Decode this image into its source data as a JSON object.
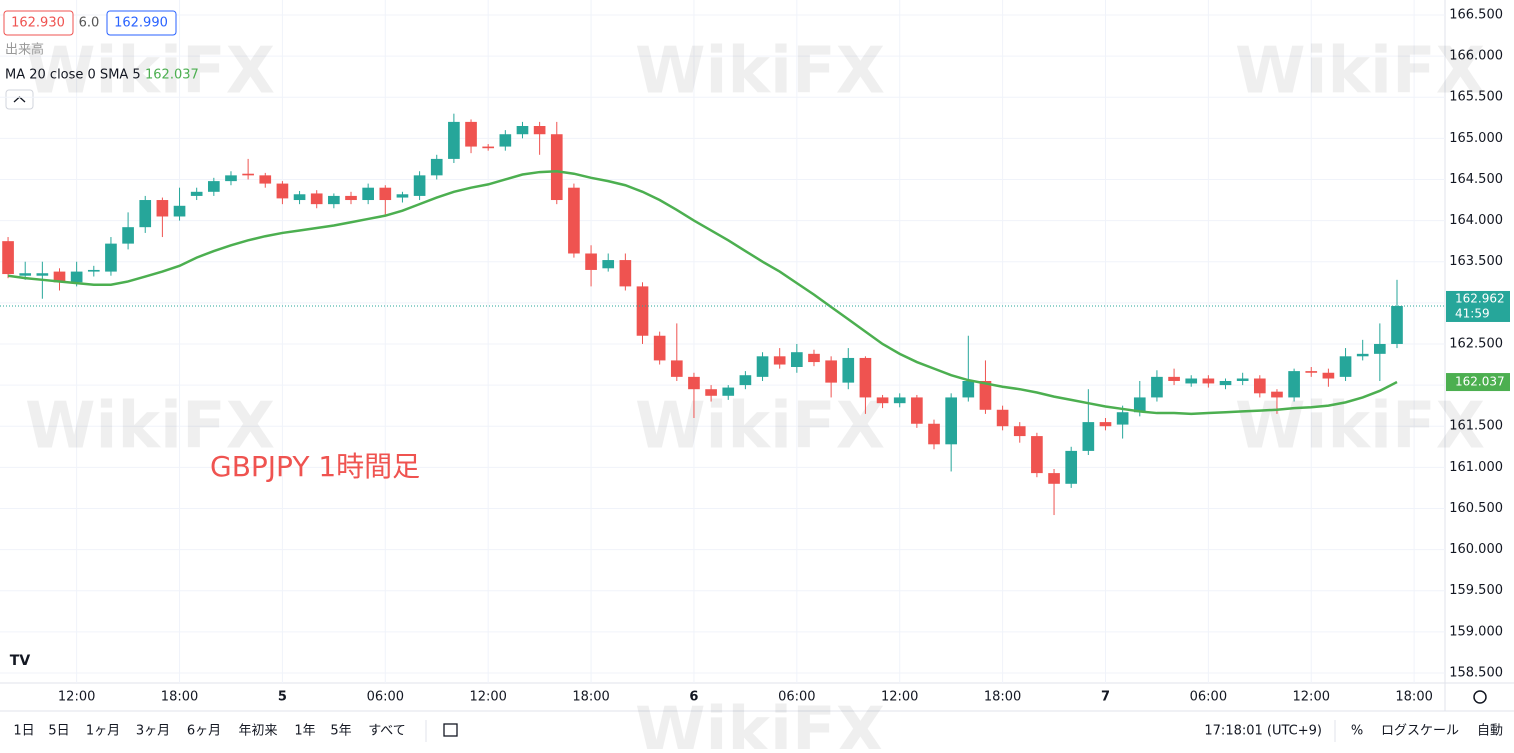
{
  "chart_data": {
    "type": "candlestick",
    "title": "GBPJPY 1時間足",
    "header": {
      "bid": "162.930",
      "spread": "6.0",
      "ask": "162.990",
      "volume_label": "出来高",
      "indicator_label": "MA 20 close 0 SMA 5",
      "indicator_value": "162.037"
    },
    "watermark": "WikiFX",
    "x": [
      0,
      1,
      2,
      3,
      4,
      5,
      6,
      7,
      8,
      9,
      10,
      11,
      12,
      13,
      14,
      15,
      16,
      17,
      18,
      19,
      20,
      21,
      22,
      23,
      24,
      25,
      26,
      27,
      28,
      29,
      30,
      31,
      32,
      33,
      34,
      35,
      36,
      37,
      38,
      39,
      40,
      41,
      42,
      43,
      44,
      45,
      46,
      47,
      48,
      49,
      50,
      51,
      52,
      53,
      54,
      55,
      56,
      57,
      58,
      59,
      60,
      61,
      62,
      63,
      64,
      65,
      66,
      67,
      68,
      69,
      70,
      71,
      72,
      73,
      74,
      75,
      76,
      77,
      78,
      79,
      80,
      81
    ],
    "open": [
      163.75,
      163.33,
      163.33,
      163.38,
      163.25,
      163.38,
      163.38,
      163.72,
      163.92,
      164.25,
      164.05,
      164.3,
      164.35,
      164.48,
      164.57,
      164.55,
      164.45,
      164.25,
      164.33,
      164.2,
      164.3,
      164.25,
      164.4,
      164.28,
      164.3,
      164.55,
      164.75,
      165.2,
      164.9,
      164.9,
      165.05,
      165.15,
      165.05,
      164.4,
      163.6,
      163.42,
      163.52,
      163.2,
      162.6,
      162.3,
      162.1,
      161.95,
      161.87,
      162.0,
      162.1,
      162.35,
      162.22,
      162.38,
      162.3,
      162.03,
      162.33,
      161.85,
      161.78,
      161.85,
      161.53,
      161.28,
      161.85,
      162.05,
      161.7,
      161.5,
      161.38,
      160.93,
      160.8,
      161.2,
      161.55,
      161.52,
      161.67,
      161.85,
      162.1,
      162.02,
      162.08,
      162.0,
      162.05,
      162.08,
      161.92,
      161.85,
      162.17,
      162.15,
      162.1,
      162.35,
      162.38,
      162.5
    ],
    "high": [
      163.8,
      163.5,
      163.5,
      163.42,
      163.5,
      163.45,
      163.8,
      164.1,
      164.3,
      164.28,
      164.4,
      164.4,
      164.52,
      164.6,
      164.75,
      164.58,
      164.48,
      164.36,
      164.37,
      164.33,
      164.35,
      164.45,
      164.43,
      164.35,
      164.6,
      164.8,
      165.3,
      165.23,
      164.93,
      165.1,
      165.2,
      165.2,
      165.2,
      164.45,
      163.7,
      163.6,
      163.6,
      163.25,
      162.65,
      162.75,
      162.15,
      162.0,
      162.0,
      162.17,
      162.4,
      162.45,
      162.5,
      162.43,
      162.35,
      162.45,
      162.35,
      161.88,
      161.9,
      161.88,
      161.58,
      161.9,
      162.6,
      162.3,
      161.75,
      161.55,
      161.42,
      160.98,
      161.25,
      161.95,
      161.6,
      161.75,
      162.05,
      162.18,
      162.2,
      162.12,
      162.12,
      162.08,
      162.15,
      162.12,
      161.95,
      162.2,
      162.22,
      162.2,
      162.45,
      162.55,
      162.75,
      163.28
    ],
    "low": [
      163.3,
      163.28,
      163.05,
      163.15,
      163.2,
      163.32,
      163.33,
      163.65,
      163.85,
      163.8,
      164.0,
      164.25,
      164.3,
      164.43,
      164.5,
      164.4,
      164.2,
      164.2,
      164.15,
      164.15,
      164.2,
      164.2,
      164.05,
      164.22,
      164.25,
      164.5,
      164.7,
      164.82,
      164.85,
      164.85,
      165.0,
      164.8,
      164.2,
      163.55,
      163.2,
      163.38,
      163.15,
      162.5,
      162.25,
      162.05,
      161.6,
      161.8,
      161.82,
      161.95,
      162.05,
      162.2,
      162.15,
      162.23,
      161.85,
      161.95,
      161.65,
      161.72,
      161.73,
      161.48,
      161.22,
      160.95,
      161.8,
      161.65,
      161.45,
      161.3,
      160.88,
      160.42,
      160.75,
      161.15,
      161.45,
      161.35,
      161.62,
      161.8,
      162.0,
      161.98,
      161.97,
      161.95,
      162.0,
      161.85,
      161.65,
      161.8,
      162.1,
      161.98,
      162.05,
      162.3,
      162.05,
      162.45
    ],
    "close": [
      163.35,
      163.36,
      163.36,
      163.25,
      163.38,
      163.4,
      163.72,
      163.92,
      164.25,
      164.05,
      164.18,
      164.35,
      164.48,
      164.55,
      164.55,
      164.45,
      164.27,
      164.32,
      164.2,
      164.3,
      164.25,
      164.4,
      164.25,
      164.32,
      164.55,
      164.75,
      165.2,
      164.9,
      164.88,
      165.05,
      165.15,
      165.05,
      164.25,
      163.6,
      163.4,
      163.52,
      163.2,
      162.6,
      162.3,
      162.1,
      161.95,
      161.87,
      161.97,
      162.12,
      162.35,
      162.25,
      162.4,
      162.28,
      162.03,
      162.33,
      161.85,
      161.78,
      161.85,
      161.53,
      161.28,
      161.85,
      162.05,
      161.7,
      161.5,
      161.38,
      160.93,
      160.8,
      161.2,
      161.55,
      161.5,
      161.67,
      161.85,
      162.1,
      162.05,
      162.08,
      162.02,
      162.05,
      162.08,
      161.9,
      161.85,
      162.17,
      162.15,
      162.08,
      162.35,
      162.38,
      162.5,
      162.962
    ],
    "ma": [
      163.33,
      163.3,
      163.28,
      163.26,
      163.24,
      163.22,
      163.22,
      163.26,
      163.32,
      163.38,
      163.45,
      163.55,
      163.63,
      163.7,
      163.76,
      163.81,
      163.85,
      163.88,
      163.91,
      163.94,
      163.98,
      164.02,
      164.06,
      164.12,
      164.2,
      164.28,
      164.35,
      164.4,
      164.44,
      164.5,
      164.56,
      164.59,
      164.6,
      164.57,
      164.52,
      164.48,
      164.43,
      164.35,
      164.25,
      164.13,
      164.0,
      163.88,
      163.76,
      163.63,
      163.5,
      163.38,
      163.24,
      163.1,
      162.95,
      162.8,
      162.65,
      162.5,
      162.38,
      162.28,
      162.2,
      162.12,
      162.06,
      162.02,
      161.98,
      161.95,
      161.91,
      161.86,
      161.82,
      161.78,
      161.74,
      161.71,
      161.68,
      161.66,
      161.66,
      161.65,
      161.66,
      161.67,
      161.68,
      161.69,
      161.7,
      161.72,
      161.73,
      161.75,
      161.79,
      161.85,
      161.93,
      162.037
    ],
    "up_color": "#26a69a",
    "down_color": "#ef5350",
    "ma_color": "#4caf50",
    "xlim": [
      -0.47,
      83.8
    ],
    "xticks": [
      {
        "value": 4,
        "label": "12:00"
      },
      {
        "value": 10,
        "label": "18:00"
      },
      {
        "value": 16,
        "label": "5"
      },
      {
        "value": 22,
        "label": "06:00"
      },
      {
        "value": 28,
        "label": "12:00"
      },
      {
        "value": 34,
        "label": "18:00"
      },
      {
        "value": 40,
        "label": "6"
      },
      {
        "value": 46,
        "label": "06:00"
      },
      {
        "value": 52,
        "label": "12:00"
      },
      {
        "value": 58,
        "label": "18:00"
      },
      {
        "value": 64,
        "label": "7"
      },
      {
        "value": 70,
        "label": "06:00"
      },
      {
        "value": 76,
        "label": "12:00"
      },
      {
        "value": 82,
        "label": "18:00"
      }
    ],
    "ylim": [
      158.378,
      166.682
    ],
    "yticks": [
      {
        "value": 158.5,
        "label": "158.500"
      },
      {
        "value": 159,
        "label": "159.000"
      },
      {
        "value": 159.5,
        "label": "159.500"
      },
      {
        "value": 160,
        "label": "160.000"
      },
      {
        "value": 160.5,
        "label": "160.500"
      },
      {
        "value": 161,
        "label": "161.000"
      },
      {
        "value": 161.5,
        "label": "161.500"
      },
      {
        "value": 162,
        "label": "162.000"
      },
      {
        "value": 162.5,
        "label": "162.500"
      },
      {
        "value": 163,
        "label": "163.000"
      },
      {
        "value": 163.5,
        "label": "163.500"
      },
      {
        "value": 164,
        "label": "164.000"
      },
      {
        "value": 164.5,
        "label": "164.500"
      },
      {
        "value": 165,
        "label": "165.000"
      },
      {
        "value": 165.5,
        "label": "165.500"
      },
      {
        "value": 166,
        "label": "166.000"
      },
      {
        "value": 166.5,
        "label": "166.500"
      }
    ],
    "grid": true,
    "price_tag": {
      "price": "162.962",
      "countdown": "41:59"
    },
    "ma_tag": "162.037"
  },
  "toolbar": {
    "ranges": [
      "1日",
      "5日",
      "1ヶ月",
      "3ヶ月",
      "6ヶ月",
      "年初来",
      "1年",
      "5年",
      "すべて"
    ],
    "clock": "17:18:01 (UTC+9)",
    "percent": "%",
    "log_scale": "ログスケール",
    "auto": "自動"
  }
}
